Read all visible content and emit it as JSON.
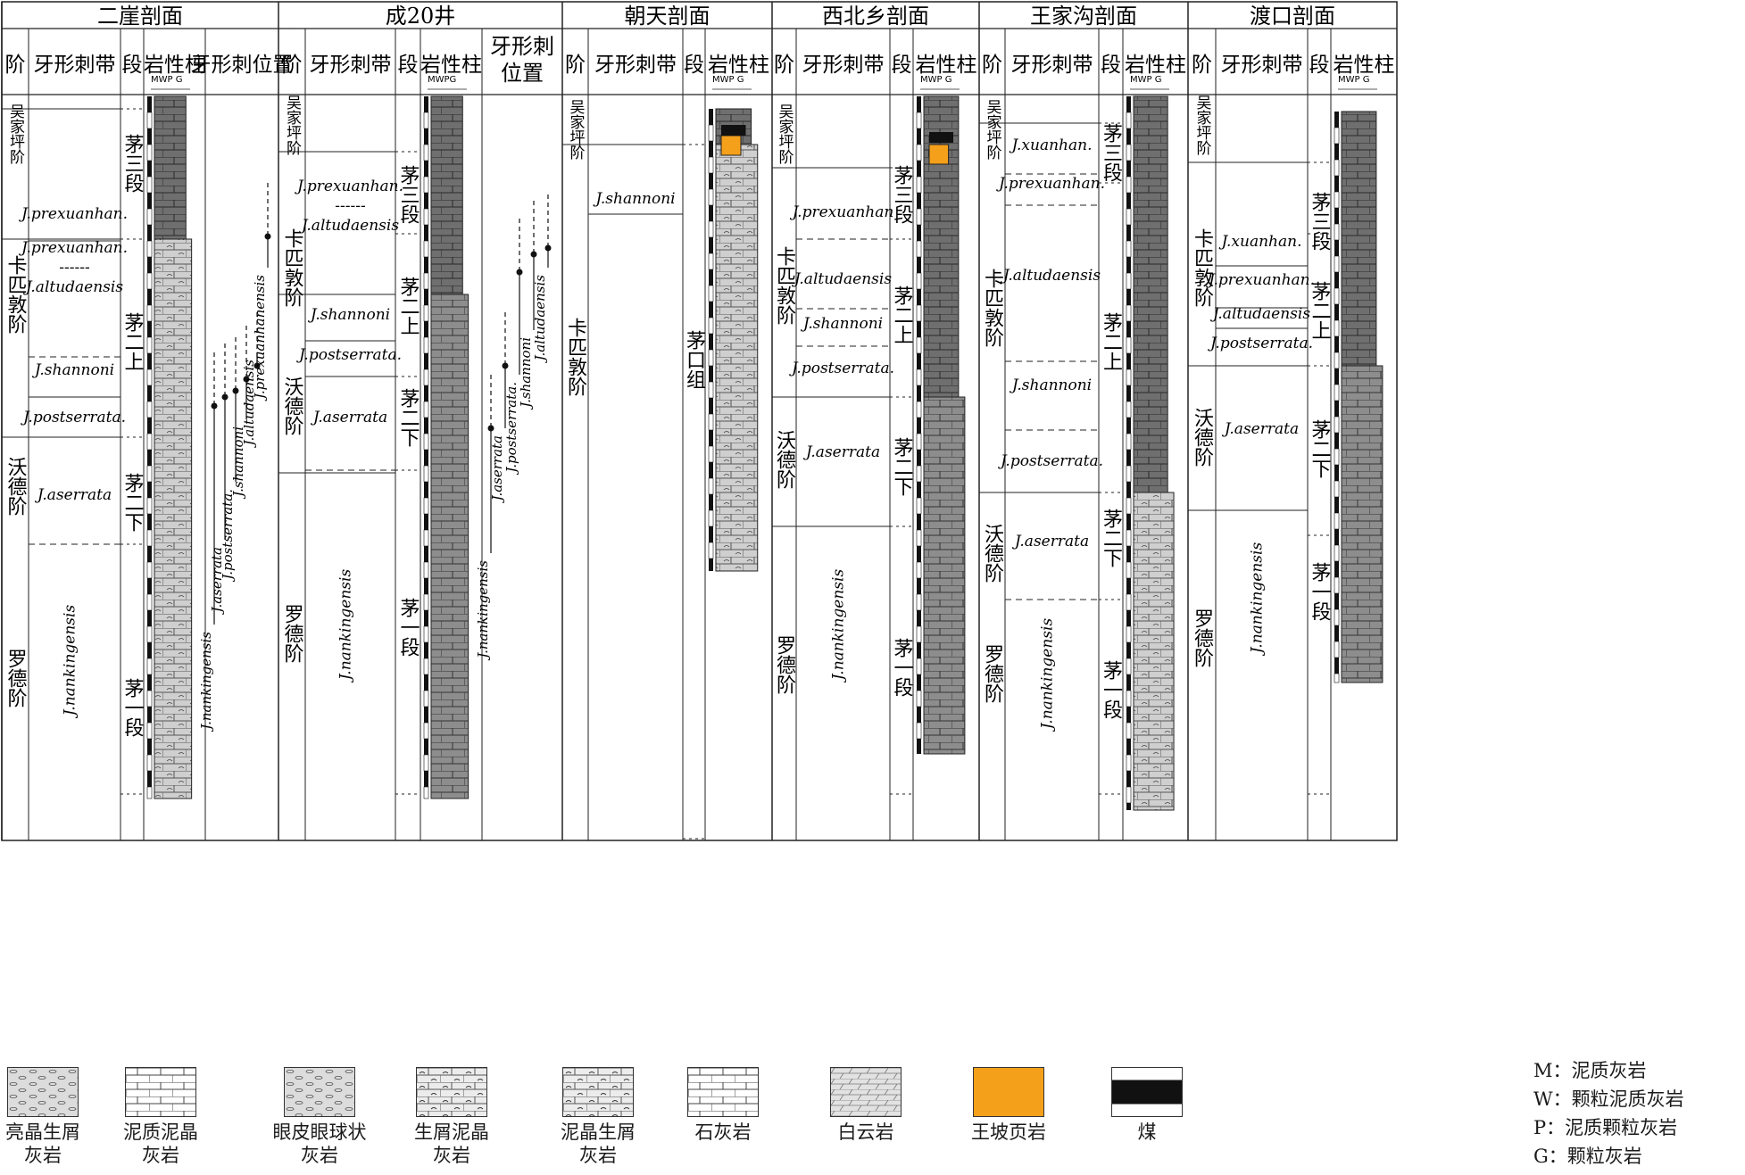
{
  "sections": [
    {
      "title": "二崖剖面",
      "headers": [
        "阶",
        "牙形刺带",
        "段",
        "岩性柱",
        "牙形刺位置"
      ],
      "stages": [
        {
          "name": "吴家坪阶"
        },
        {
          "name": "卡匹敦阶"
        },
        {
          "name": "沃德阶"
        },
        {
          "name": "罗德阶"
        }
      ],
      "zones": [
        "J.prexuanhan.",
        "J.prexuanhan.\n------\nJ.altudaensis",
        "J.shannoni",
        "J.postserrata.",
        "J.aserrata",
        "J.nankingensis"
      ],
      "members": [
        "茅三段",
        "茅二上",
        "茅二下",
        "茅一段"
      ],
      "ranges": [
        "J.nankingensis",
        "J.aserrata",
        "J.postserrata.",
        "J.shannoni",
        "J.altudaensis",
        "J.prexuanhanensis"
      ],
      "lith_codes": "MWP  G"
    },
    {
      "title": "成20井",
      "headers": [
        "阶",
        "牙形刺带",
        "段",
        "岩性柱",
        "牙形刺\n位置"
      ],
      "stages": [
        {
          "name": "吴家坪阶"
        },
        {
          "name": "卡匹敦阶"
        },
        {
          "name": "沃德阶"
        },
        {
          "name": "罗德阶"
        }
      ],
      "zones": [
        "J.prexuanhan.\n------\nJ.altudaensis",
        "J.shannoni",
        "J.postserrata.",
        "J.aserrata",
        "J.nankingensis"
      ],
      "members": [
        "茅三段",
        "茅二上",
        "茅二下",
        "茅一段"
      ],
      "ranges": [
        "J.nankingensis",
        "J.aserrata",
        "J.postserrata.",
        "J.shannoni",
        "J.altudaensis"
      ],
      "lith_codes": "MWPG"
    },
    {
      "title": "朝天剖面",
      "headers": [
        "阶",
        "牙形刺带",
        "段",
        "岩性柱"
      ],
      "stages": [
        {
          "name": "吴家坪阶"
        },
        {
          "name": "卡匹敦阶"
        }
      ],
      "zones": [
        "J.shannoni"
      ],
      "members": [
        "茅口组"
      ],
      "lith_codes": "MWP  G"
    },
    {
      "title": "西北乡剖面",
      "headers": [
        "阶",
        "牙形刺带",
        "段",
        "岩性柱"
      ],
      "stages": [
        {
          "name": "吴家坪阶"
        },
        {
          "name": "卡匹敦阶"
        },
        {
          "name": "沃德阶"
        },
        {
          "name": "罗德阶"
        }
      ],
      "zones": [
        "J.prexuanhan",
        "J.altudaensis",
        "J.shannoni",
        "J.postserrata.",
        "J.aserrata",
        "J.nankingensis"
      ],
      "members": [
        "茅三段",
        "茅二上",
        "茅二下",
        "茅一段"
      ],
      "lith_codes": "MWP  G"
    },
    {
      "title": "王家沟剖面",
      "headers": [
        "阶",
        "牙形刺带",
        "段",
        "岩性柱"
      ],
      "stages": [
        {
          "name": "吴家坪阶"
        },
        {
          "name": "卡匹敦阶"
        },
        {
          "name": "沃德阶"
        },
        {
          "name": "罗德阶"
        }
      ],
      "zones": [
        "J.xuanhan.",
        "J.prexuanhan.",
        "J.altudaensis",
        "J.shannoni",
        "J.postserrata.",
        "J.aserrata",
        "J.nankingensis"
      ],
      "members": [
        "茅三段",
        "茅二上",
        "茅二下",
        "茅一段"
      ],
      "lith_codes": "MWP  G"
    },
    {
      "title": "渡口剖面",
      "headers": [
        "阶",
        "牙形刺带",
        "段",
        "岩性柱"
      ],
      "stages": [
        {
          "name": "吴家坪阶"
        },
        {
          "name": "卡匹敦阶"
        },
        {
          "name": "沃德阶"
        },
        {
          "name": "罗德阶"
        }
      ],
      "zones": [
        "J.xuanhan.",
        "J.prexuanhan.",
        "J.altudaensis",
        "J.postserrata.",
        "J.aserrata",
        "J.nankingensis"
      ],
      "members": [
        "茅三段",
        "茅二上",
        "茅二下",
        "茅一段"
      ],
      "lith_codes": "MWP  G"
    }
  ],
  "legend": [
    {
      "label": "亮晶生屑\n灰岩",
      "pattern": "bio_sparry"
    },
    {
      "label": "泥质泥晶\n灰岩",
      "pattern": "argillaceous_micrite"
    },
    {
      "label": "眼皮眼球状\n灰岩",
      "pattern": "eyeball"
    },
    {
      "label": "生屑泥晶\n灰岩",
      "pattern": "bio_micrite"
    },
    {
      "label": "泥晶生屑\n灰岩",
      "pattern": "micrite_bio"
    },
    {
      "label": "石灰岩",
      "pattern": "limestone"
    },
    {
      "label": "白云岩",
      "pattern": "dolomite"
    },
    {
      "label": "王坡页岩",
      "pattern": "shale",
      "color": "#f5a01a"
    },
    {
      "label": "煤",
      "pattern": "coal"
    }
  ],
  "lith_code_key": [
    {
      "code": "M：",
      "desc": "泥质灰岩"
    },
    {
      "code": "W：",
      "desc": "颗粒泥质灰岩"
    },
    {
      "code": "P：",
      "desc": "泥质颗粒灰岩"
    },
    {
      "code": "G：",
      "desc": "颗粒灰岩"
    }
  ],
  "colors": {
    "line": "#222222",
    "column_fill": "#9a9a9a",
    "dark_fill": "#6f6f6f",
    "light_fill": "#d6d6d6",
    "shale": "#f5a01a"
  }
}
